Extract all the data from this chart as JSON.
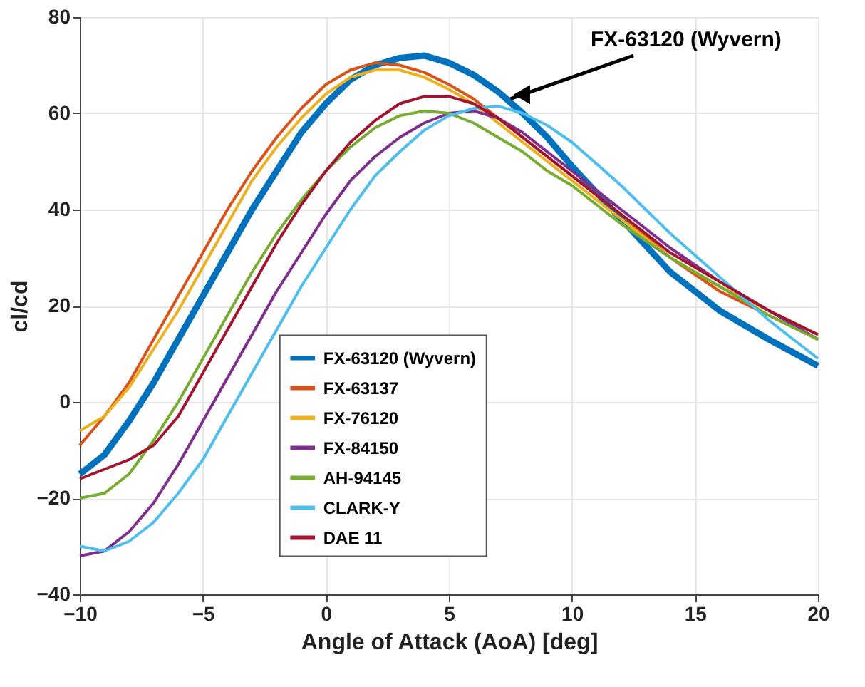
{
  "chart_data": {
    "type": "line",
    "xlabel": "Angle of Attack (AoA) [deg]",
    "ylabel": "cl/cd",
    "x": [
      -10,
      -9,
      -8,
      -7,
      -6,
      -5,
      -4,
      -3,
      -2,
      -1,
      0,
      1,
      2,
      3,
      4,
      5,
      6,
      7,
      8,
      9,
      10,
      12,
      14,
      16,
      18,
      20
    ],
    "series": [
      {
        "name": "FX-63120 (Wyvern)",
        "color": "#0072bd",
        "values": [
          -15,
          -11,
          -4,
          4,
          13,
          22,
          31,
          40,
          48,
          56,
          62,
          67,
          70,
          71.5,
          72,
          70.5,
          68,
          64.5,
          60,
          55,
          49,
          38,
          27,
          19,
          13,
          7.5
        ]
      },
      {
        "name": "FX-63137",
        "color": "#d95319",
        "values": [
          -9,
          -3,
          4,
          13,
          22,
          31,
          40,
          48,
          55,
          61,
          66,
          69,
          70.5,
          70,
          68.5,
          66,
          63,
          59,
          55,
          51,
          47,
          39,
          30,
          23,
          18,
          13
        ]
      },
      {
        "name": "FX-76120",
        "color": "#edb120",
        "values": [
          -6,
          -3,
          3,
          11,
          19,
          28,
          37,
          46,
          53,
          59,
          64,
          67.5,
          69,
          69,
          67.5,
          65,
          62,
          58,
          54,
          50,
          46,
          38,
          30,
          24,
          19,
          14
        ]
      },
      {
        "name": "FX-84150",
        "color": "#7e2f8e",
        "values": [
          -32,
          -31,
          -27,
          -21,
          -13,
          -4,
          5,
          14,
          23,
          31,
          39,
          46,
          51,
          55,
          58,
          60,
          60.5,
          59,
          56,
          52,
          48,
          40,
          32,
          25,
          19,
          13
        ]
      },
      {
        "name": "AH-94145",
        "color": "#77ac30",
        "values": [
          -20,
          -19,
          -15,
          -8,
          0,
          9,
          18,
          27,
          35,
          42,
          48,
          53,
          57,
          59.5,
          60.5,
          60,
          58,
          55,
          52,
          48,
          45,
          37,
          30,
          24,
          18,
          13
        ]
      },
      {
        "name": "CLARK-Y",
        "color": "#4dbeee",
        "values": [
          -30,
          -31,
          -29,
          -25,
          -19,
          -12,
          -3,
          6,
          15,
          24,
          32,
          40,
          47,
          52,
          56.5,
          59.5,
          61,
          61.5,
          60,
          57.5,
          54,
          45,
          35,
          26,
          17,
          9
        ]
      },
      {
        "name": "DAE 11",
        "color": "#a2142f",
        "values": [
          -16,
          -14,
          -12,
          -9,
          -3,
          6,
          15,
          24,
          33,
          41,
          48,
          54,
          58.5,
          62,
          63.5,
          63.5,
          62,
          59,
          55,
          51,
          47,
          39,
          31,
          25,
          19,
          14
        ]
      }
    ],
    "xlim": [
      -10,
      20
    ],
    "xticks": [
      -10,
      -5,
      0,
      5,
      10,
      15,
      20
    ],
    "ylim": [
      -40,
      80
    ],
    "yticks": [
      -40,
      -20,
      0,
      20,
      40,
      60,
      80
    ],
    "grid": true,
    "legend": "bottom left",
    "marker": "none",
    "line_style": "solid",
    "annotations": [
      {
        "text": "FX-63120 (Wyvern)",
        "x": 7.5,
        "y": 63
      }
    ]
  }
}
